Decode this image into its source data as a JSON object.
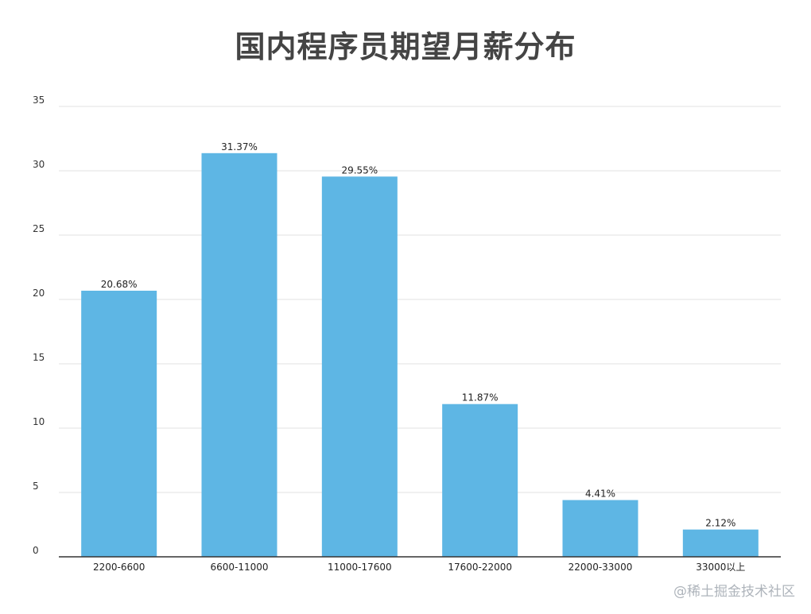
{
  "colors": {
    "bar": "#5eb6e4",
    "grid": "#e2e2e2",
    "axis": "#333333",
    "title": "#444444"
  },
  "watermark": "@稀土掘金技术社区",
  "chart_data": {
    "type": "bar",
    "title": "国内程序员期望月薪分布",
    "xlabel": "",
    "ylabel": "",
    "categories": [
      "2200-6600",
      "6600-11000",
      "11000-17600",
      "17600-22000",
      "22000-33000",
      "33000以上"
    ],
    "values": [
      20.68,
      31.37,
      29.55,
      11.87,
      4.41,
      2.12
    ],
    "data_labels": [
      "20.68%",
      "31.37%",
      "29.55%",
      "11.87%",
      "4.41%",
      "2.12%"
    ],
    "ylim": [
      0,
      35
    ],
    "yticks": [
      0,
      5,
      10,
      15,
      20,
      25,
      30,
      35
    ],
    "grid": true,
    "legend": "none"
  }
}
